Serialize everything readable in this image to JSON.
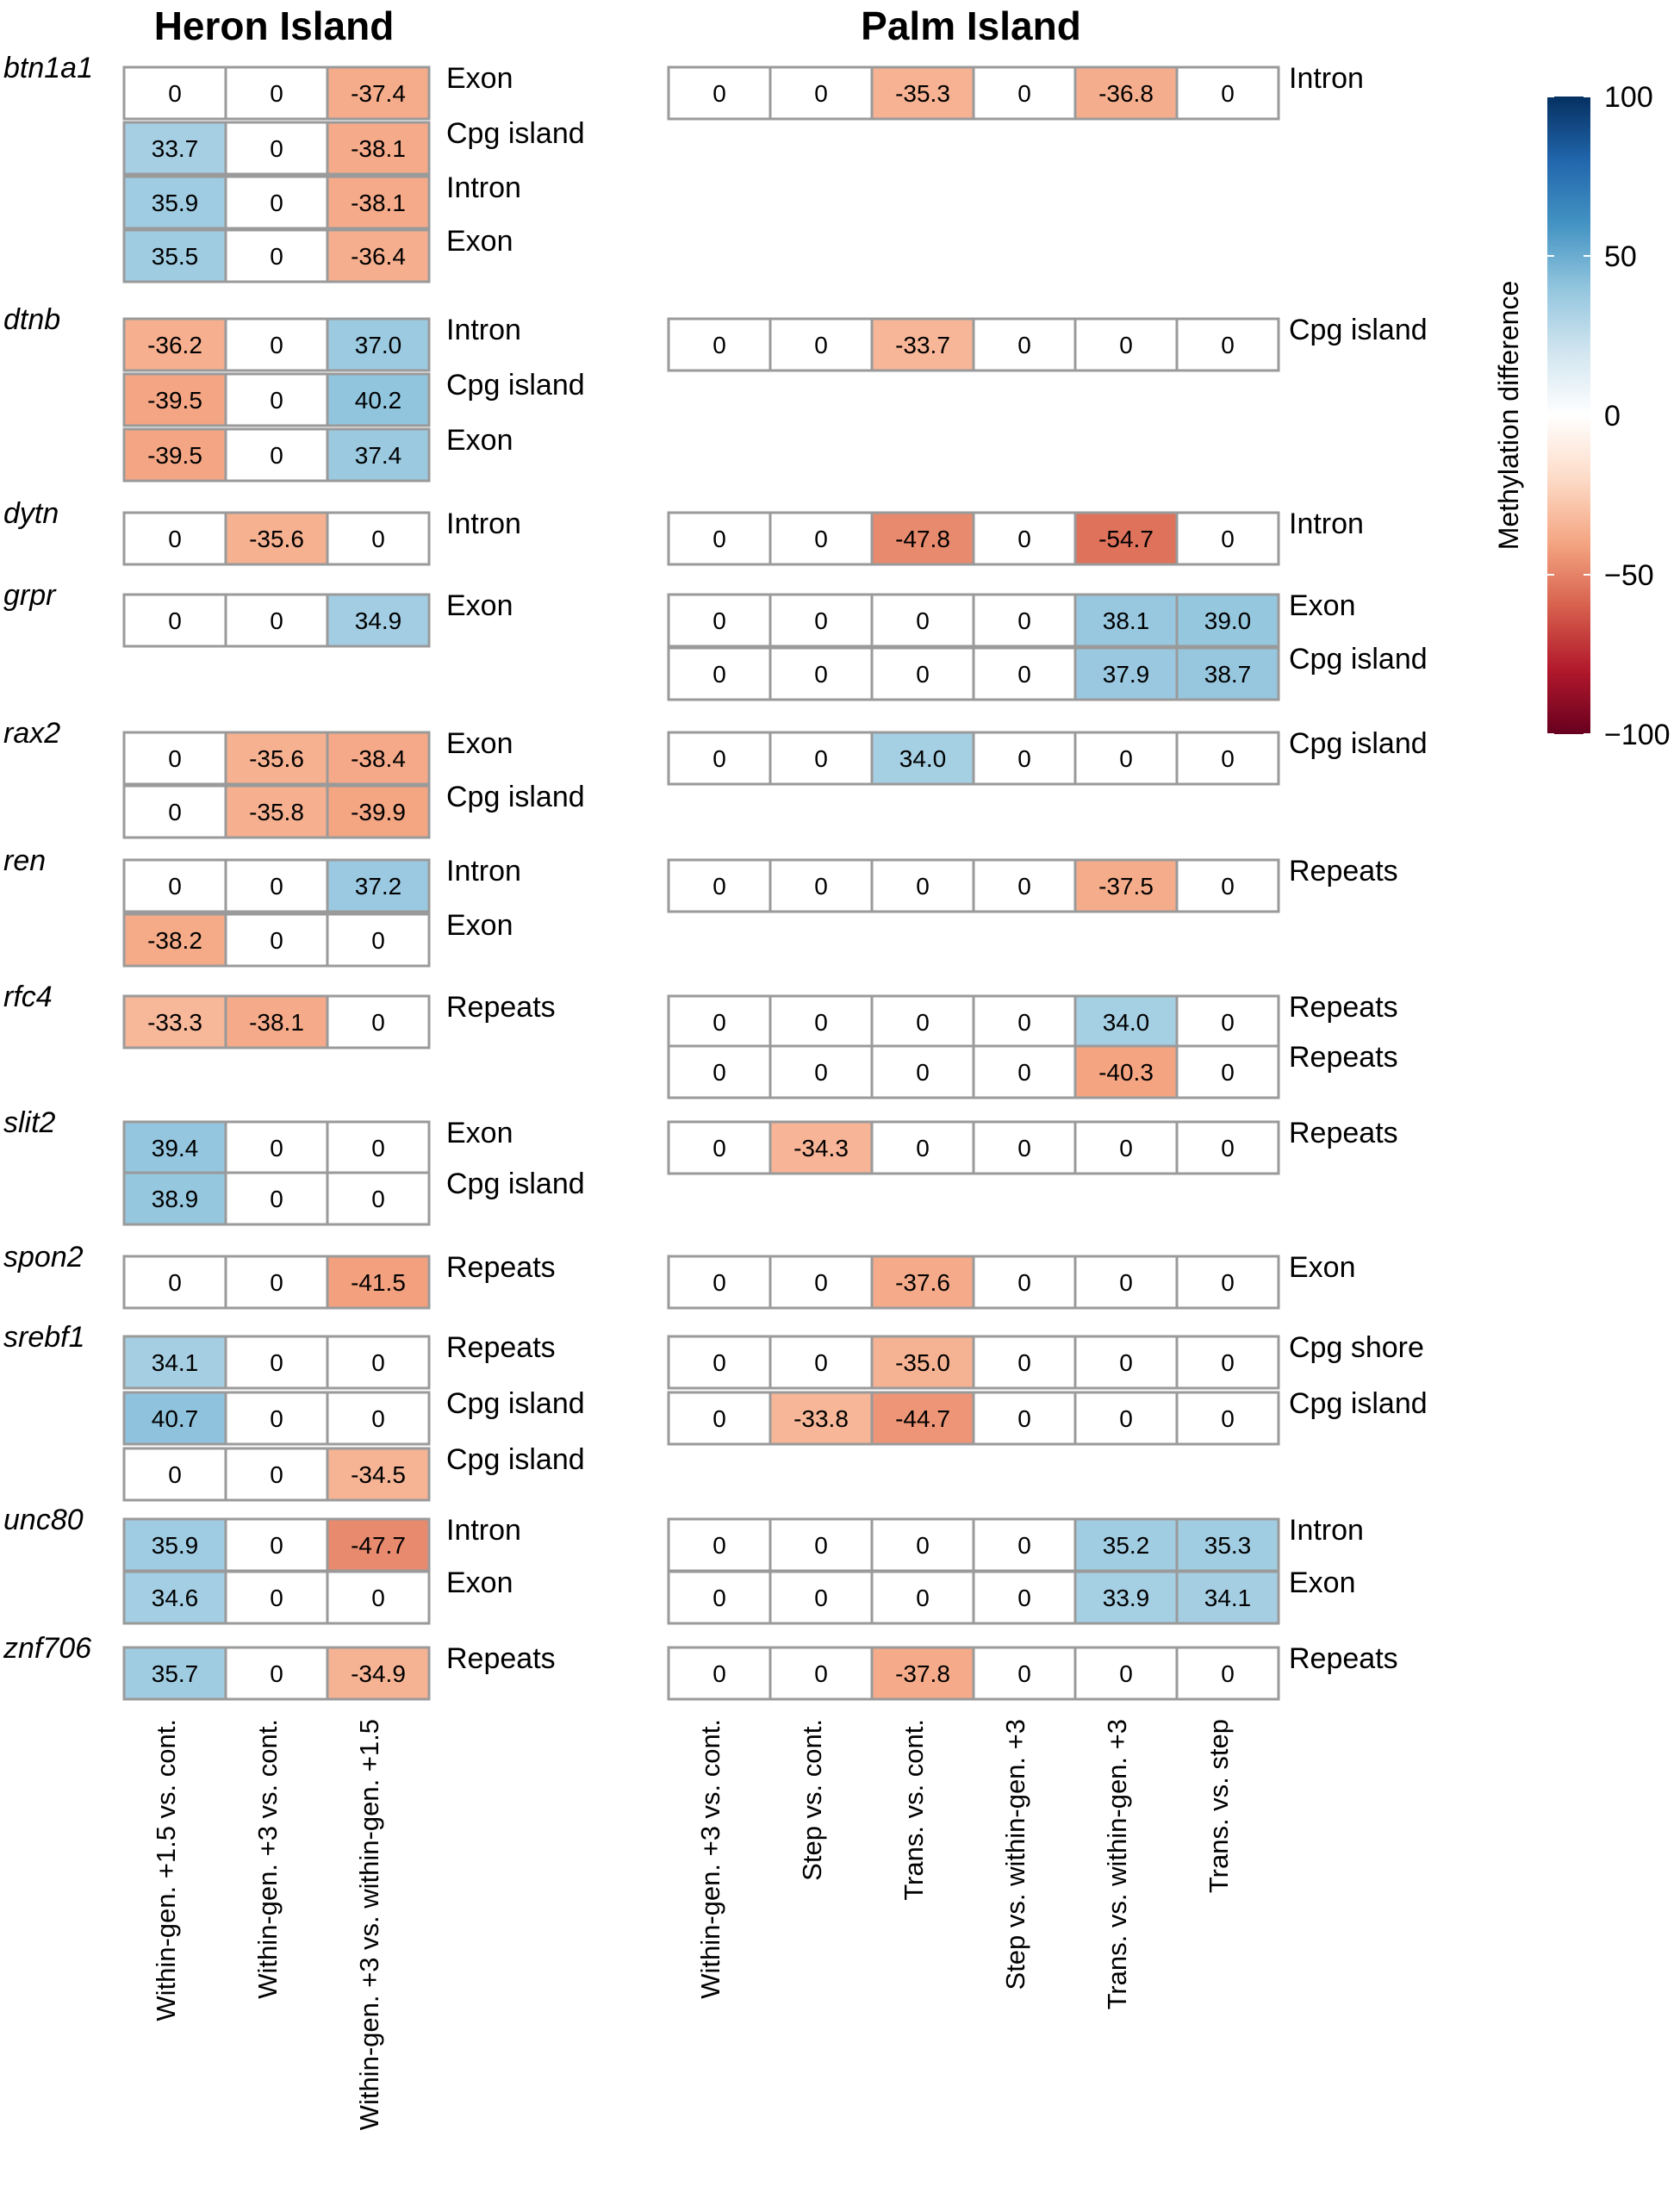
{
  "chart_data": {
    "type": "heatmap",
    "legend": {
      "title": "Methylation difference",
      "ticks": [
        "100",
        "50",
        "0",
        "−50",
        "−100"
      ],
      "range": [
        -100,
        100
      ],
      "colors": {
        "low": "#67001f",
        "mid": "#ffffff",
        "high": "#053061"
      }
    },
    "panels": [
      {
        "title": "Heron Island",
        "columns": [
          "Within-gen. +1.5  vs. cont.",
          "Within-gen. +3  vs. cont.",
          "Within-gen. +3  vs. within-gen. +1.5"
        ],
        "genes": [
          {
            "name": "btn1a1",
            "rows": [
              {
                "values": [
                  "0",
                  "0",
                  "-37.4"
                ],
                "region": "Exon"
              },
              {
                "values": [
                  "33.7",
                  "0",
                  "-38.1"
                ],
                "region": "Cpg island"
              },
              {
                "values": [
                  "35.9",
                  "0",
                  "-38.1"
                ],
                "region": "Intron"
              },
              {
                "values": [
                  "35.5",
                  "0",
                  "-36.4"
                ],
                "region": "Exon"
              }
            ]
          },
          {
            "name": "dtnb",
            "rows": [
              {
                "values": [
                  "-36.2",
                  "0",
                  "37.0"
                ],
                "region": "Intron"
              },
              {
                "values": [
                  "-39.5",
                  "0",
                  "40.2"
                ],
                "region": "Cpg island"
              },
              {
                "values": [
                  "-39.5",
                  "0",
                  "37.4"
                ],
                "region": "Exon"
              }
            ]
          },
          {
            "name": "dytn",
            "rows": [
              {
                "values": [
                  "0",
                  "-35.6",
                  "0"
                ],
                "region": "Intron"
              }
            ]
          },
          {
            "name": "grpr",
            "rows": [
              {
                "values": [
                  "0",
                  "0",
                  "34.9"
                ],
                "region": "Exon"
              }
            ]
          },
          {
            "name": "rax2",
            "rows": [
              {
                "values": [
                  "0",
                  "-35.6",
                  "-38.4"
                ],
                "region": "Exon"
              },
              {
                "values": [
                  "0",
                  "-35.8",
                  "-39.9"
                ],
                "region": "Cpg island"
              }
            ]
          },
          {
            "name": "ren",
            "rows": [
              {
                "values": [
                  "0",
                  "0",
                  "37.2"
                ],
                "region": "Intron"
              },
              {
                "values": [
                  "-38.2",
                  "0",
                  "0"
                ],
                "region": "Exon"
              }
            ]
          },
          {
            "name": "rfc4",
            "rows": [
              {
                "values": [
                  "-33.3",
                  "-38.1",
                  "0"
                ],
                "region": "Repeats"
              }
            ]
          },
          {
            "name": "slit2",
            "rows": [
              {
                "values": [
                  "39.4",
                  "0",
                  "0"
                ],
                "region": "Exon"
              },
              {
                "values": [
                  "38.9",
                  "0",
                  "0"
                ],
                "region": "Cpg island"
              }
            ]
          },
          {
            "name": "spon2",
            "rows": [
              {
                "values": [
                  "0",
                  "0",
                  "-41.5"
                ],
                "region": "Repeats"
              }
            ]
          },
          {
            "name": "srebf1",
            "rows": [
              {
                "values": [
                  "34.1",
                  "0",
                  "0"
                ],
                "region": "Repeats"
              },
              {
                "values": [
                  "40.7",
                  "0",
                  "0"
                ],
                "region": "Cpg island"
              },
              {
                "values": [
                  "0",
                  "0",
                  "-34.5"
                ],
                "region": "Cpg island"
              }
            ]
          },
          {
            "name": "unc80",
            "rows": [
              {
                "values": [
                  "35.9",
                  "0",
                  "-47.7"
                ],
                "region": "Intron"
              },
              {
                "values": [
                  "34.6",
                  "0",
                  "0"
                ],
                "region": "Exon"
              }
            ]
          },
          {
            "name": "znf706",
            "rows": [
              {
                "values": [
                  "35.7",
                  "0",
                  "-34.9"
                ],
                "region": "Repeats"
              }
            ]
          }
        ]
      },
      {
        "title": "Palm Island",
        "columns": [
          "Within-gen. +3  vs. cont.",
          "Step  vs. cont.",
          "Trans.  vs. cont.",
          "Step vs. within-gen. +3",
          "Trans. vs. within-gen. +3",
          "Trans. vs. step"
        ],
        "genes": [
          {
            "name": "btn1a1",
            "rows": [
              {
                "values": [
                  "0",
                  "0",
                  "-35.3",
                  "0",
                  "-36.8",
                  "0"
                ],
                "region": "Intron"
              }
            ]
          },
          {
            "name": "dtnb",
            "rows": [
              {
                "values": [
                  "0",
                  "0",
                  "-33.7",
                  "0",
                  "0",
                  "0"
                ],
                "region": "Cpg island"
              }
            ]
          },
          {
            "name": "dytn",
            "rows": [
              {
                "values": [
                  "0",
                  "0",
                  "-47.8",
                  "0",
                  "-54.7",
                  "0"
                ],
                "region": "Intron"
              }
            ]
          },
          {
            "name": "grpr",
            "rows": [
              {
                "values": [
                  "0",
                  "0",
                  "0",
                  "0",
                  "38.1",
                  "39.0"
                ],
                "region": "Exon"
              },
              {
                "values": [
                  "0",
                  "0",
                  "0",
                  "0",
                  "37.9",
                  "38.7"
                ],
                "region": "Cpg island"
              }
            ]
          },
          {
            "name": "rax2",
            "rows": [
              {
                "values": [
                  "0",
                  "0",
                  "34.0",
                  "0",
                  "0",
                  "0"
                ],
                "region": "Cpg island"
              }
            ]
          },
          {
            "name": "ren",
            "rows": [
              {
                "values": [
                  "0",
                  "0",
                  "0",
                  "0",
                  "-37.5",
                  "0"
                ],
                "region": "Repeats"
              }
            ]
          },
          {
            "name": "rfc4",
            "rows": [
              {
                "values": [
                  "0",
                  "0",
                  "0",
                  "0",
                  "34.0",
                  "0"
                ],
                "region": "Repeats"
              },
              {
                "values": [
                  "0",
                  "0",
                  "0",
                  "0",
                  "-40.3",
                  "0"
                ],
                "region": "Repeats"
              }
            ]
          },
          {
            "name": "slit2",
            "rows": [
              {
                "values": [
                  "0",
                  "-34.3",
                  "0",
                  "0",
                  "0",
                  "0"
                ],
                "region": "Repeats"
              }
            ]
          },
          {
            "name": "spon2",
            "rows": [
              {
                "values": [
                  "0",
                  "0",
                  "-37.6",
                  "0",
                  "0",
                  "0"
                ],
                "region": "Exon"
              }
            ]
          },
          {
            "name": "srebf1",
            "rows": [
              {
                "values": [
                  "0",
                  "0",
                  "-35.0",
                  "0",
                  "0",
                  "0"
                ],
                "region": "Cpg shore"
              },
              {
                "values": [
                  "0",
                  "-33.8",
                  "-44.7",
                  "0",
                  "0",
                  "0"
                ],
                "region": "Cpg island"
              }
            ]
          },
          {
            "name": "unc80",
            "rows": [
              {
                "values": [
                  "0",
                  "0",
                  "0",
                  "0",
                  "35.2",
                  "35.3"
                ],
                "region": "Intron"
              },
              {
                "values": [
                  "0",
                  "0",
                  "0",
                  "0",
                  "33.9",
                  "34.1"
                ],
                "region": "Exon"
              }
            ]
          },
          {
            "name": "znf706",
            "rows": [
              {
                "values": [
                  "0",
                  "0",
                  "-37.8",
                  "0",
                  "0",
                  "0"
                ],
                "region": "Repeats"
              }
            ]
          }
        ]
      }
    ]
  }
}
